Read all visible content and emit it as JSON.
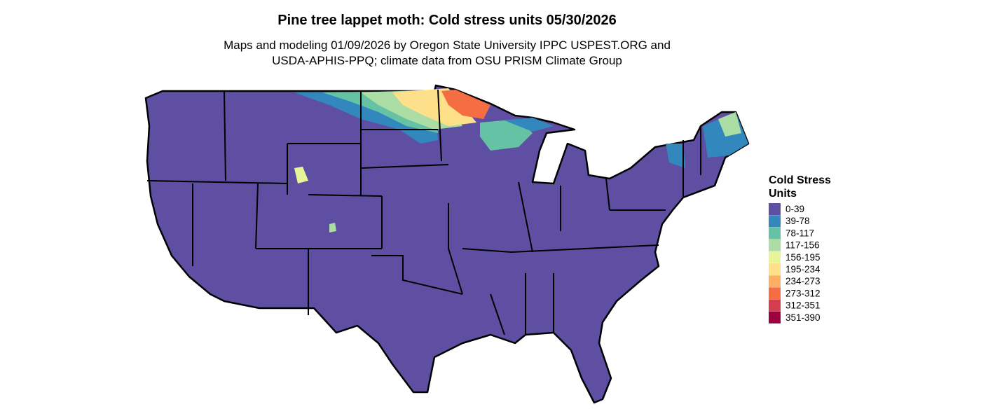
{
  "title": "Pine tree lappet moth: Cold stress units 05/30/2026",
  "subtitle": [
    "Maps and modeling 01/09/2026 by Oregon State University IPPC USPEST.ORG and",
    "USDA-APHIS-PPQ; climate data from OSU PRISM Climate Group"
  ],
  "legend": {
    "title": [
      "Cold Stress",
      "Units"
    ],
    "items": [
      {
        "label": "0-39",
        "color": "#5e4fa2"
      },
      {
        "label": "39-78",
        "color": "#3288bd"
      },
      {
        "label": "78-117",
        "color": "#66c2a5"
      },
      {
        "label": "117-156",
        "color": "#abdda4"
      },
      {
        "label": "156-195",
        "color": "#e6f598"
      },
      {
        "label": "195-234",
        "color": "#fee08b"
      },
      {
        "label": "234-273",
        "color": "#fdae61"
      },
      {
        "label": "273-312",
        "color": "#f46d43"
      },
      {
        "label": "312-351",
        "color": "#d53e4f"
      },
      {
        "label": "351-390",
        "color": "#9e0142"
      }
    ]
  }
}
